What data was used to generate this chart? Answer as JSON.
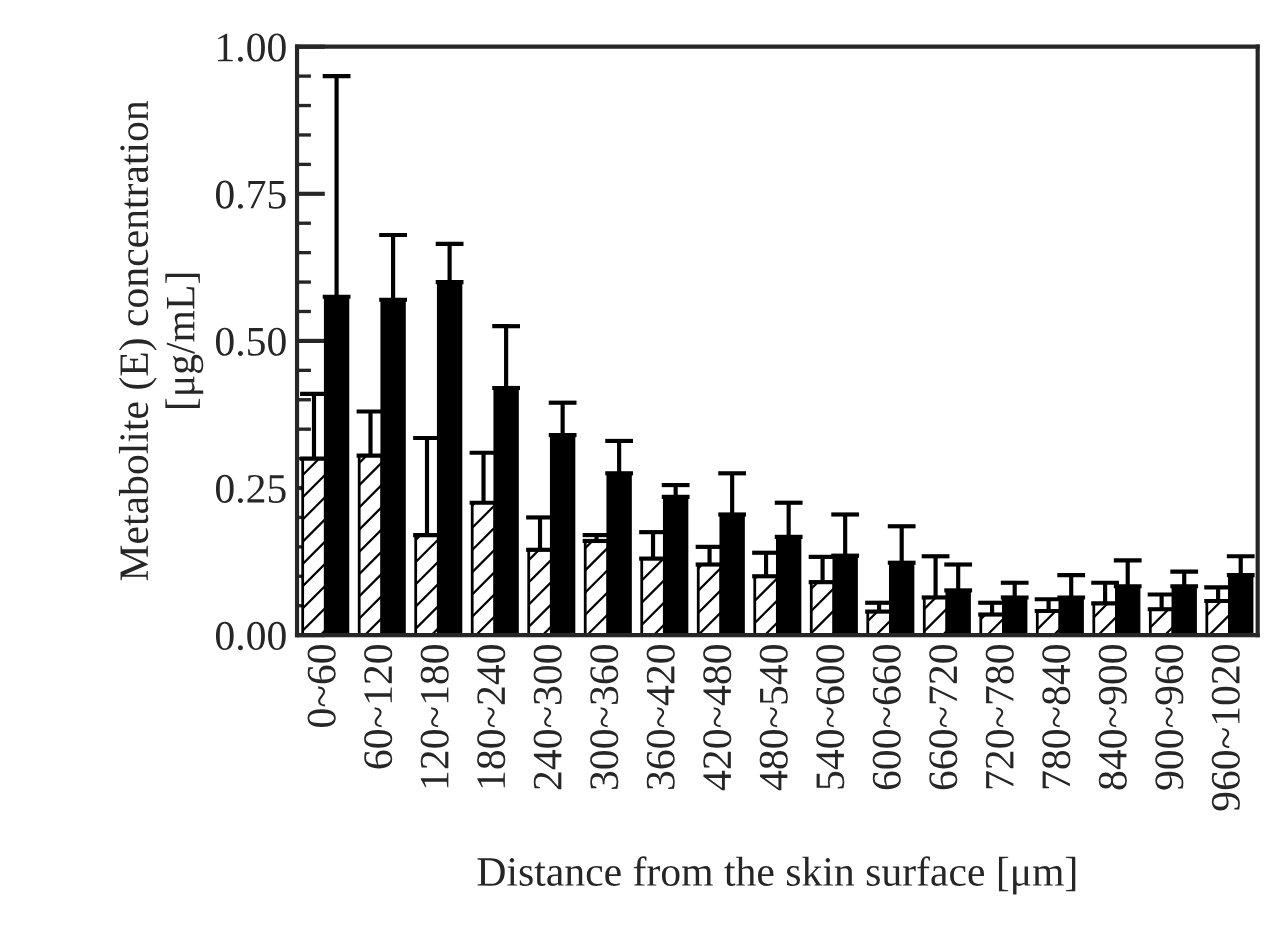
{
  "chart_data": {
    "type": "bar",
    "xlabel": "Distance from the skin surface [μm]",
    "ylabel": "Metabolite (E) concentration\n[μg/mL]",
    "categories": [
      "0~60",
      "60~120",
      "120~180",
      "180~240",
      "240~300",
      "300~360",
      "360~420",
      "420~480",
      "480~540",
      "540~600",
      "600~660",
      "660~720",
      "720~780",
      "780~840",
      "840~900",
      "900~960",
      "960~1020"
    ],
    "ylim": [
      0,
      1
    ],
    "yticks": [
      {
        "value": 0,
        "label": "0.00"
      },
      {
        "value": 0.25,
        "label": "0.25"
      },
      {
        "value": 0.5,
        "label": "0.50"
      },
      {
        "value": 0.75,
        "label": "0.75"
      },
      {
        "value": 1,
        "label": "1.00"
      }
    ],
    "grid": false,
    "legend": false,
    "series": [
      {
        "color": "#ffffff",
        "values": [
          0.3,
          0.305,
          0.17,
          0.225,
          0.145,
          0.16,
          0.13,
          0.12,
          0.1,
          0.09,
          0.04,
          0.064,
          0.035,
          0.041,
          0.054,
          0.044,
          0.058
        ],
        "errors": [
          [
            0.3,
            0.41
          ],
          [
            0.305,
            0.38
          ],
          [
            0.17,
            0.335
          ],
          [
            0.225,
            0.31
          ],
          [
            0.145,
            0.2
          ],
          [
            0.16,
            0.17
          ],
          [
            0.13,
            0.175
          ],
          [
            0.12,
            0.15
          ],
          [
            0.1,
            0.14
          ],
          [
            0.09,
            0.133
          ],
          [
            0.04,
            0.055
          ],
          [
            0.064,
            0.134
          ],
          [
            0.035,
            0.055
          ],
          [
            0.041,
            0.061
          ],
          [
            0.054,
            0.089
          ],
          [
            0.044,
            0.069
          ],
          [
            0.058,
            0.081
          ]
        ]
      },
      {
        "color": "#000000",
        "values": [
          0.575,
          0.57,
          0.6,
          0.42,
          0.34,
          0.275,
          0.235,
          0.205,
          0.167,
          0.135,
          0.123,
          0.076,
          0.064,
          0.064,
          0.083,
          0.083,
          0.102
        ],
        "errors": [
          [
            0.575,
            0.95
          ],
          [
            0.57,
            0.68
          ],
          [
            0.6,
            0.665
          ],
          [
            0.42,
            0.525
          ],
          [
            0.34,
            0.395
          ],
          [
            0.275,
            0.33
          ],
          [
            0.235,
            0.255
          ],
          [
            0.205,
            0.275
          ],
          [
            0.167,
            0.225
          ],
          [
            0.135,
            0.205
          ],
          [
            0.123,
            0.185
          ],
          [
            0.076,
            0.12
          ],
          [
            0.064,
            0.089
          ],
          [
            0.064,
            0.102
          ],
          [
            0.083,
            0.127
          ],
          [
            0.083,
            0.108
          ],
          [
            0.102,
            0.134
          ]
        ]
      }
    ]
  }
}
